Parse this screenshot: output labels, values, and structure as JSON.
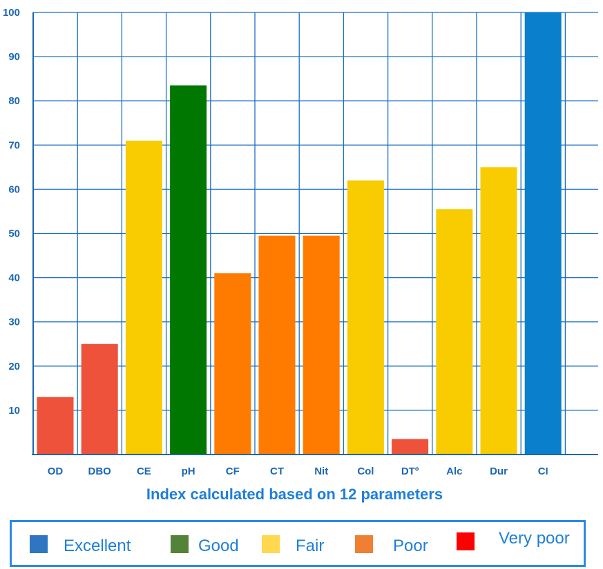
{
  "chart_data": {
    "type": "bar",
    "categories": [
      "OD",
      "DBO",
      "CE",
      "pH",
      "CF",
      "CT",
      "Nit",
      "Col",
      "DTº",
      "Alc",
      "Dur",
      "CI"
    ],
    "values": [
      13,
      25,
      71,
      83.5,
      41,
      49.5,
      49.5,
      62,
      3.5,
      55.5,
      65,
      100
    ],
    "bar_classes": [
      "Very poor",
      "Very poor",
      "Fair",
      "Good",
      "Poor",
      "Poor",
      "Poor",
      "Fair",
      "Very poor",
      "Fair",
      "Fair",
      "Excellent"
    ],
    "ylim": [
      0,
      100
    ],
    "yticks": [
      10,
      20,
      30,
      40,
      50,
      60,
      70,
      80,
      90,
      100
    ],
    "grid": true,
    "title": "",
    "xlabel": "Index calculated based on 12 parameters",
    "ylabel": ""
  },
  "bar_colors": {
    "Excellent": "#0a80cc",
    "Good": "#007700",
    "Fair": "#f8cc00",
    "Poor": "#ff7b00",
    "Very poor": "#ee523b"
  },
  "legend": [
    {
      "label": "Excellent",
      "color": "#2e76c2"
    },
    {
      "label": "Good",
      "color": "#548236"
    },
    {
      "label": "Fair",
      "color": "#ffd84d"
    },
    {
      "label": "Poor",
      "color": "#ef7f33"
    },
    {
      "label": "Very poor",
      "color": "#ff0000"
    }
  ],
  "colors": {
    "grid": "#1a6fc4",
    "axis": "#1a66b3"
  }
}
